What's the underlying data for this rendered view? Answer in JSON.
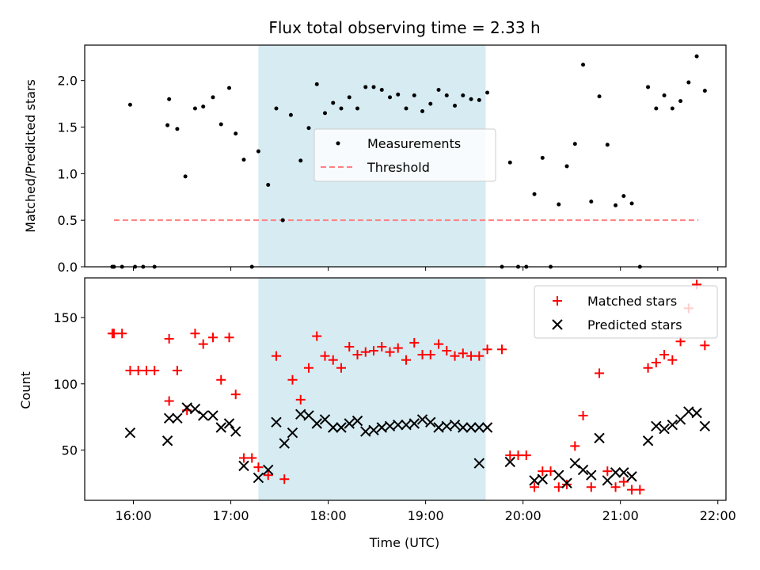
{
  "chart_data": {
    "title": "Flux total observing time = 2.33 h",
    "xlabel": "Time (UTC)",
    "x_ticks": [
      "16:00",
      "17:00",
      "18:00",
      "19:00",
      "20:00",
      "21:00",
      "22:00"
    ],
    "x_range": [
      "15:30",
      "22:05"
    ],
    "highlight_span": {
      "start": "17:17",
      "end": "19:37",
      "color": "#add8e6"
    },
    "colors": {
      "measurements": "#000000",
      "threshold": "#ff8080",
      "matched": "#ff0000",
      "predicted": "#000000",
      "span": "#add8e6"
    },
    "panels": [
      {
        "type": "scatter",
        "ylabel": "Matched/Predicted stars",
        "ylim": [
          0,
          2.38
        ],
        "y_ticks": [
          "0.0",
          "0.5",
          "1.0",
          "1.5",
          "2.0"
        ],
        "y_tick_values": [
          0,
          0.5,
          1.0,
          1.5,
          2.0
        ],
        "legend": {
          "position": "center",
          "entries": [
            "Measurements",
            "Threshold"
          ]
        },
        "threshold": {
          "value": 0.5,
          "x_start": "15:48",
          "x_end": "21:48"
        },
        "series": [
          {
            "name": "Measurements",
            "marker": "dot",
            "points": [
              [
                "15:47",
                0
              ],
              [
                "15:48",
                0
              ],
              [
                "15:53",
                0
              ],
              [
                "15:58",
                1.74
              ],
              [
                "16:01",
                0
              ],
              [
                "16:06",
                0
              ],
              [
                "16:13",
                0
              ],
              [
                "16:21",
                1.52
              ],
              [
                "16:22",
                1.8
              ],
              [
                "16:27",
                1.48
              ],
              [
                "16:32",
                0.97
              ],
              [
                "16:38",
                1.7
              ],
              [
                "16:43",
                1.72
              ],
              [
                "16:49",
                1.82
              ],
              [
                "16:54",
                1.53
              ],
              [
                "16:59",
                1.92
              ],
              [
                "17:03",
                1.43
              ],
              [
                "17:08",
                1.15
              ],
              [
                "17:13",
                0
              ],
              [
                "17:17",
                1.24
              ],
              [
                "17:23",
                0.88
              ],
              [
                "17:28",
                1.7
              ],
              [
                "17:32",
                0.5
              ],
              [
                "17:37",
                1.63
              ],
              [
                "17:43",
                1.14
              ],
              [
                "17:48",
                1.49
              ],
              [
                "17:53",
                1.96
              ],
              [
                "17:58",
                1.65
              ],
              [
                "18:03",
                1.76
              ],
              [
                "18:08",
                1.7
              ],
              [
                "18:13",
                1.82
              ],
              [
                "18:18",
                1.7
              ],
              [
                "18:23",
                1.93
              ],
              [
                "18:28",
                1.93
              ],
              [
                "18:33",
                1.9
              ],
              [
                "18:38",
                1.82
              ],
              [
                "18:43",
                1.85
              ],
              [
                "18:48",
                1.7
              ],
              [
                "18:53",
                1.84
              ],
              [
                "18:58",
                1.67
              ],
              [
                "19:03",
                1.75
              ],
              [
                "19:08",
                1.9
              ],
              [
                "19:13",
                1.84
              ],
              [
                "19:18",
                1.73
              ],
              [
                "19:23",
                1.84
              ],
              [
                "19:28",
                1.8
              ],
              [
                "19:33",
                1.79
              ],
              [
                "19:38",
                1.87
              ],
              [
                "19:47",
                0
              ],
              [
                "19:52",
                1.12
              ],
              [
                "19:57",
                0
              ],
              [
                "20:02",
                0
              ],
              [
                "20:07",
                0.78
              ],
              [
                "20:12",
                1.17
              ],
              [
                "20:17",
                0
              ],
              [
                "20:22",
                0.67
              ],
              [
                "20:27",
                1.08
              ],
              [
                "20:32",
                1.32
              ],
              [
                "20:37",
                2.17
              ],
              [
                "20:42",
                0.7
              ],
              [
                "20:47",
                1.83
              ],
              [
                "20:52",
                1.31
              ],
              [
                "20:57",
                0.66
              ],
              [
                "21:02",
                0.76
              ],
              [
                "21:07",
                0.68
              ],
              [
                "21:12",
                0
              ],
              [
                "21:17",
                1.93
              ],
              [
                "21:22",
                1.7
              ],
              [
                "21:27",
                1.84
              ],
              [
                "21:32",
                1.7
              ],
              [
                "21:37",
                1.78
              ],
              [
                "21:42",
                1.98
              ],
              [
                "21:47",
                2.26
              ],
              [
                "21:52",
                1.89
              ]
            ]
          }
        ]
      },
      {
        "type": "scatter",
        "ylabel": "Count",
        "ylim": [
          12,
          180
        ],
        "y_ticks": [
          "50",
          "100",
          "150"
        ],
        "y_tick_values": [
          50,
          100,
          150
        ],
        "legend": {
          "position": "top-right",
          "entries": [
            "Matched stars",
            "Predicted stars"
          ]
        },
        "series": [
          {
            "name": "Matched stars",
            "marker": "plus",
            "points": [
              [
                "15:47",
                138
              ],
              [
                "15:48",
                138
              ],
              [
                "15:53",
                138
              ],
              [
                "15:58",
                110
              ],
              [
                "16:03",
                110
              ],
              [
                "16:08",
                110
              ],
              [
                "16:13",
                110
              ],
              [
                "16:22",
                87
              ],
              [
                "16:22",
                134
              ],
              [
                "16:27",
                110
              ],
              [
                "16:33",
                80
              ],
              [
                "16:38",
                138
              ],
              [
                "16:43",
                130
              ],
              [
                "16:49",
                135
              ],
              [
                "16:54",
                103
              ],
              [
                "16:59",
                135
              ],
              [
                "17:03",
                92
              ],
              [
                "17:08",
                44
              ],
              [
                "17:13",
                44
              ],
              [
                "17:17",
                37
              ],
              [
                "17:23",
                31
              ],
              [
                "17:28",
                121
              ],
              [
                "17:33",
                28
              ],
              [
                "17:38",
                103
              ],
              [
                "17:43",
                88
              ],
              [
                "17:48",
                112
              ],
              [
                "17:53",
                136
              ],
              [
                "17:58",
                121
              ],
              [
                "18:03",
                118
              ],
              [
                "18:08",
                112
              ],
              [
                "18:13",
                128
              ],
              [
                "18:18",
                122
              ],
              [
                "18:23",
                124
              ],
              [
                "18:28",
                125
              ],
              [
                "18:33",
                128
              ],
              [
                "18:38",
                124
              ],
              [
                "18:43",
                127
              ],
              [
                "18:48",
                118
              ],
              [
                "18:53",
                131
              ],
              [
                "18:58",
                122
              ],
              [
                "19:03",
                122
              ],
              [
                "19:08",
                130
              ],
              [
                "19:13",
                125
              ],
              [
                "19:18",
                121
              ],
              [
                "19:23",
                123
              ],
              [
                "19:28",
                121
              ],
              [
                "19:33",
                121
              ],
              [
                "19:38",
                126
              ],
              [
                "19:47",
                126
              ],
              [
                "19:52",
                46
              ],
              [
                "19:57",
                46
              ],
              [
                "20:02",
                46
              ],
              [
                "20:07",
                22
              ],
              [
                "20:12",
                34
              ],
              [
                "20:17",
                34
              ],
              [
                "20:22",
                22
              ],
              [
                "20:27",
                24
              ],
              [
                "20:32",
                53
              ],
              [
                "20:37",
                76
              ],
              [
                "20:42",
                22
              ],
              [
                "20:47",
                108
              ],
              [
                "20:52",
                34
              ],
              [
                "20:57",
                22
              ],
              [
                "21:02",
                26
              ],
              [
                "21:07",
                20
              ],
              [
                "21:12",
                20
              ],
              [
                "21:17",
                112
              ],
              [
                "21:22",
                116
              ],
              [
                "21:27",
                122
              ],
              [
                "21:32",
                118
              ],
              [
                "21:37",
                132
              ],
              [
                "21:42",
                157
              ],
              [
                "21:47",
                175
              ],
              [
                "21:52",
                129
              ]
            ]
          },
          {
            "name": "Predicted stars",
            "marker": "x",
            "points": [
              [
                "15:58",
                63
              ],
              [
                "16:21",
                57
              ],
              [
                "16:22",
                74
              ],
              [
                "16:27",
                74
              ],
              [
                "16:33",
                82
              ],
              [
                "16:38",
                81
              ],
              [
                "16:43",
                76
              ],
              [
                "16:49",
                76
              ],
              [
                "16:54",
                67
              ],
              [
                "16:59",
                70
              ],
              [
                "17:03",
                64
              ],
              [
                "17:08",
                38
              ],
              [
                "17:17",
                29
              ],
              [
                "17:23",
                35
              ],
              [
                "17:28",
                71
              ],
              [
                "17:33",
                55
              ],
              [
                "17:38",
                63
              ],
              [
                "17:43",
                77
              ],
              [
                "17:48",
                76
              ],
              [
                "17:53",
                70
              ],
              [
                "17:58",
                73
              ],
              [
                "18:03",
                67
              ],
              [
                "18:08",
                67
              ],
              [
                "18:13",
                70
              ],
              [
                "18:18",
                72
              ],
              [
                "18:23",
                64
              ],
              [
                "18:28",
                65
              ],
              [
                "18:33",
                67
              ],
              [
                "18:38",
                68
              ],
              [
                "18:43",
                69
              ],
              [
                "18:48",
                69
              ],
              [
                "18:53",
                70
              ],
              [
                "18:58",
                73
              ],
              [
                "19:03",
                71
              ],
              [
                "19:08",
                67
              ],
              [
                "19:13",
                68
              ],
              [
                "19:18",
                69
              ],
              [
                "19:23",
                67
              ],
              [
                "19:28",
                67
              ],
              [
                "19:33",
                67
              ],
              [
                "19:38",
                67
              ],
              [
                "19:33",
                40
              ],
              [
                "19:52",
                41
              ],
              [
                "20:07",
                27
              ],
              [
                "20:12",
                28
              ],
              [
                "20:22",
                31
              ],
              [
                "20:27",
                25
              ],
              [
                "20:32",
                40
              ],
              [
                "20:37",
                35
              ],
              [
                "20:42",
                31
              ],
              [
                "20:47",
                59
              ],
              [
                "20:52",
                27
              ],
              [
                "20:57",
                33
              ],
              [
                "21:02",
                33
              ],
              [
                "21:07",
                30
              ],
              [
                "21:17",
                57
              ],
              [
                "21:22",
                68
              ],
              [
                "21:27",
                66
              ],
              [
                "21:32",
                69
              ],
              [
                "21:37",
                73
              ],
              [
                "21:42",
                79
              ],
              [
                "21:47",
                78
              ],
              [
                "21:52",
                68
              ]
            ]
          }
        ]
      }
    ]
  }
}
